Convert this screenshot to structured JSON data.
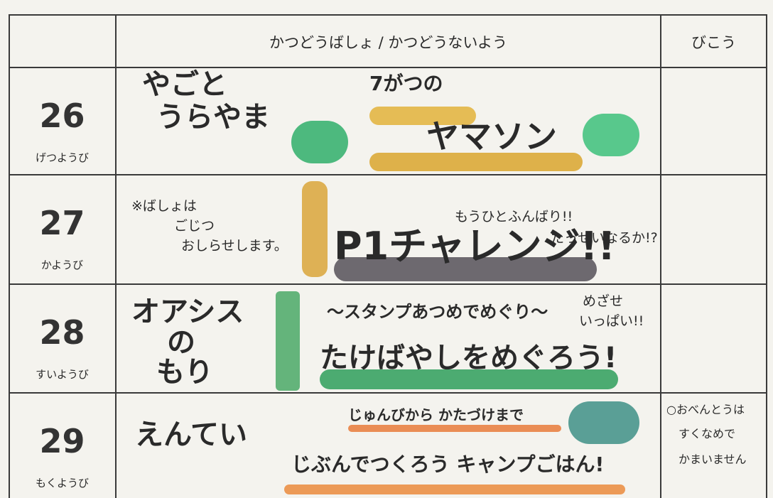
{
  "header": {
    "activity": "かつどうばしょ / かつどうないよう",
    "notes": "びこう"
  },
  "rows": [
    {
      "day": "26",
      "weekday": "げつようび",
      "place": [
        "やごと",
        "うらやま"
      ],
      "content": [
        "7がつの",
        "ヤマソン"
      ],
      "side": [],
      "notes": []
    },
    {
      "day": "27",
      "weekday": "かようび",
      "place": [
        "※ばしょは",
        "ごじつ",
        "おしらせします。"
      ],
      "content": [
        "P1チャレンジ!!"
      ],
      "side": [
        "もうひとふんばり!!",
        "たっせいなるか!?"
      ],
      "notes": []
    },
    {
      "day": "28",
      "weekday": "すいようび",
      "place": [
        "オアシス",
        "の",
        "もり"
      ],
      "content": [
        "〜スタンプあつめでめぐり〜",
        "たけばやしをめぐろう!"
      ],
      "side": [
        "めざせ",
        "いっぱい!!"
      ],
      "notes": []
    },
    {
      "day": "29",
      "weekday": "もくようび",
      "place": [
        "えんてい"
      ],
      "content": [
        "じゅんびから かたづけまで",
        "じぶんでつくろう キャンプごはん!"
      ],
      "side": [],
      "notes": [
        "○おべんとうは",
        "すくなめで",
        "かまいません"
      ]
    }
  ]
}
